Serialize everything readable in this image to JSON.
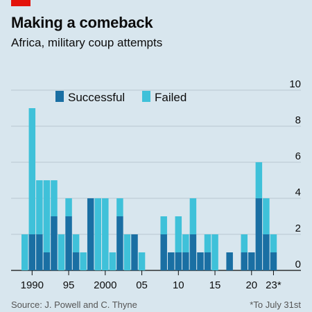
{
  "header": {
    "title": "Making a comeback",
    "subtitle": "Africa, military coup attempts"
  },
  "footer": {
    "source": "Source: J. Powell and C. Thyne",
    "footnote": "*To July 31st"
  },
  "colors": {
    "successful": "#1a6fa3",
    "failed": "#3fc1d9",
    "brand_red": "#e3120b",
    "background": "#d8e6ee",
    "gridline": "#b7c7d0"
  },
  "chart_data": {
    "type": "bar",
    "stacked": true,
    "title": "Making a comeback",
    "subtitle": "Africa, military coup attempts",
    "categories": [
      "1989",
      "1990",
      "1991",
      "1992",
      "1993",
      "1994",
      "1995",
      "1996",
      "1997",
      "1998",
      "1999",
      "2000",
      "2001",
      "2002",
      "2003",
      "2004",
      "2005",
      "2006",
      "2007",
      "2008",
      "2009",
      "2010",
      "2011",
      "2012",
      "2013",
      "2014",
      "2015",
      "2016",
      "2017",
      "2018",
      "2019",
      "2020",
      "2021",
      "2022",
      "2023"
    ],
    "series": [
      {
        "name": "Successful",
        "values": [
          0,
          2,
          2,
          1,
          3,
          0,
          3,
          1,
          0,
          4,
          0,
          0,
          0,
          3,
          0,
          2,
          0,
          0,
          0,
          2,
          1,
          1,
          1,
          2,
          1,
          1,
          0,
          0,
          1,
          0,
          1,
          1,
          4,
          2,
          1
        ]
      },
      {
        "name": "Failed",
        "values": [
          2,
          7,
          3,
          4,
          2,
          2,
          1,
          1,
          1,
          0,
          4,
          4,
          1,
          1,
          2,
          0,
          1,
          0,
          0,
          1,
          0,
          2,
          1,
          2,
          0,
          1,
          2,
          0,
          0,
          0,
          1,
          0,
          2,
          2,
          1
        ]
      }
    ],
    "ylim": [
      0,
      10
    ],
    "yticks": [
      0,
      2,
      4,
      6,
      8,
      10
    ],
    "xtick_labels": [
      {
        "category": "1990",
        "label": "1990"
      },
      {
        "category": "1995",
        "label": "95"
      },
      {
        "category": "2000",
        "label": "2000"
      },
      {
        "category": "2005",
        "label": "05"
      },
      {
        "category": "2010",
        "label": "10"
      },
      {
        "category": "2015",
        "label": "15"
      },
      {
        "category": "2020",
        "label": "20"
      },
      {
        "category": "2023",
        "label": "23*"
      }
    ],
    "legend": [
      "Successful",
      "Failed"
    ],
    "legend_position": "top-left",
    "grid": true,
    "yaxis_position": "right"
  }
}
